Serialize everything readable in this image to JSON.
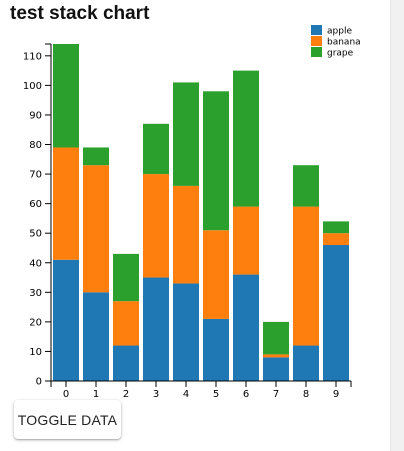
{
  "chart_data": {
    "type": "bar",
    "stacked": true,
    "title": "test stack chart",
    "xlabel": "",
    "ylabel": "",
    "categories": [
      "0",
      "1",
      "2",
      "3",
      "4",
      "5",
      "6",
      "7",
      "8",
      "9"
    ],
    "series": [
      {
        "name": "apple",
        "color": "#1f77b4",
        "values": [
          41,
          30,
          12,
          35,
          33,
          21,
          36,
          8,
          12,
          46
        ]
      },
      {
        "name": "banana",
        "color": "#ff7f0e",
        "values": [
          38,
          43,
          15,
          35,
          33,
          30,
          23,
          1,
          47,
          4
        ]
      },
      {
        "name": "grape",
        "color": "#2ca02c",
        "values": [
          35,
          6,
          16,
          17,
          35,
          47,
          46,
          11,
          14,
          4
        ]
      }
    ],
    "ylim": [
      0,
      114
    ],
    "yticks": [
      0,
      10,
      20,
      30,
      40,
      50,
      60,
      70,
      80,
      90,
      100,
      110
    ],
    "grid": false,
    "legend": "top-right"
  },
  "controls": {
    "toggle_label": "TOGGLE DATA"
  }
}
